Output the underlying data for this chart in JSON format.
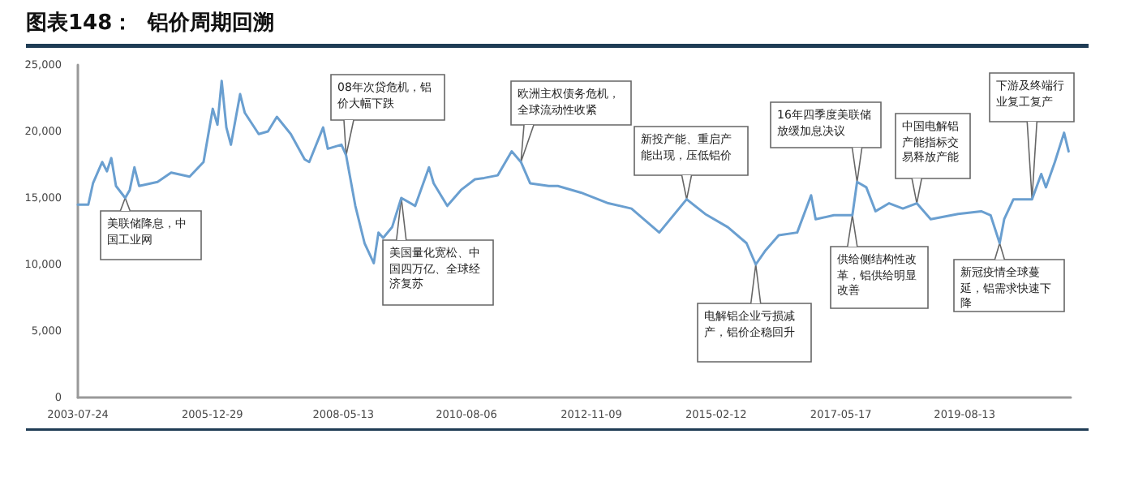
{
  "chart_data": {
    "type": "line",
    "title": "图表148：  铝价周期回溯",
    "x": [
      "2003-07-24",
      "2003-10",
      "2003-11",
      "2004-01",
      "2004-02",
      "2004-03",
      "2004-04",
      "2004-06",
      "2004-07",
      "2004-08",
      "2004-09",
      "2005-01",
      "2005-04",
      "2005-08",
      "2005-11",
      "2006-01",
      "2006-02",
      "2006-03",
      "2006-04",
      "2006-05",
      "2006-07",
      "2006-08",
      "2006-11",
      "2007-01",
      "2007-03",
      "2007-06",
      "2007-09",
      "2007-10",
      "2008-01",
      "2008-02",
      "2008-05",
      "2008-06",
      "2008-08",
      "2008-10",
      "2008-12",
      "2009-01",
      "2009-02",
      "2009-04",
      "2009-06",
      "2009-09",
      "2009-12",
      "2010-01",
      "2010-04",
      "2010-07",
      "2010-10",
      "2010-12",
      "2011-03",
      "2011-06",
      "2011-08",
      "2011-10",
      "2012-02",
      "2012-04",
      "2012-09",
      "2013-03",
      "2013-08",
      "2014-02",
      "2014-08",
      "2014-12",
      "2015-05",
      "2015-09",
      "2015-11",
      "2016-01",
      "2016-04",
      "2016-08",
      "2016-11",
      "2016-12",
      "2017-04",
      "2017-08",
      "2017-09",
      "2017-11",
      "2018-01",
      "2018-04",
      "2018-07",
      "2018-10",
      "2019-01",
      "2019-07",
      "2019-12",
      "2020-02",
      "2020-04",
      "2020-05",
      "2020-07",
      "2020-11",
      "2021-01",
      "2021-02",
      "2021-04",
      "2021-06",
      "2021-07"
    ],
    "series": [
      {
        "color": "#6a9fd0",
        "values": [
          14500,
          14500,
          16100,
          17700,
          17000,
          18000,
          15900,
          15000,
          15600,
          17300,
          15900,
          16200,
          16900,
          16600,
          17700,
          21700,
          20500,
          23800,
          20300,
          19000,
          22800,
          21400,
          19800,
          20000,
          21100,
          19800,
          17900,
          17700,
          20300,
          18700,
          19000,
          18200,
          14400,
          11600,
          10100,
          12400,
          12000,
          12800,
          15000,
          14400,
          17300,
          16100,
          14400,
          15600,
          16400,
          16500,
          16700,
          18500,
          17700,
          16100,
          15900,
          15900,
          15400,
          14600,
          14200,
          12400,
          14900,
          13800,
          12800,
          11600,
          10000,
          11000,
          12200,
          12400,
          15200,
          13400,
          13700,
          13700,
          16200,
          15800,
          14000,
          14600,
          14200,
          14600,
          13400,
          13800,
          14000,
          13700,
          11600,
          13400,
          14900,
          14900,
          16800,
          15800,
          17700,
          19900,
          18500
        ]
      }
    ],
    "xlim": [
      "2003-07-24",
      "2021-07-15"
    ],
    "xticks": [
      "2003-07-24",
      "2005-12-29",
      "2008-05-13",
      "2010-08-06",
      "2012-11-09",
      "2015-02-12",
      "2017-05-17",
      "2019-08-13"
    ],
    "ylim": [
      0,
      25000
    ],
    "yticks": [
      {
        "value": 0,
        "label": "0"
      },
      {
        "value": 5000,
        "label": "5,000"
      },
      {
        "value": 10000,
        "label": "10,000"
      },
      {
        "value": 15000,
        "label": "15,000"
      },
      {
        "value": 20000,
        "label": "20,000"
      },
      {
        "value": 25000,
        "label": "25,000"
      }
    ],
    "grid": false,
    "marker": "none",
    "line_style": "solid",
    "annotations": [
      {
        "text": "美联储降息，中国工业网",
        "x": "2004-06",
        "y": 15000
      },
      {
        "text": "08年次贷危机，铝价大幅下跌",
        "x": "2008-06",
        "y": 18200
      },
      {
        "text": "美国量化宽松、中国四万亿、全球经济复苏",
        "x": "2009-06",
        "y": 15000
      },
      {
        "text": "欧洲主权债务危机，全球流动性收紧",
        "x": "2011-08",
        "y": 17700
      },
      {
        "text": "新投产能、重启产能出现，压低铝价",
        "x": "2014-08",
        "y": 14900
      },
      {
        "text": "16年四季度美联储放缓加息决议",
        "x": "2017-09",
        "y": 16200
      },
      {
        "text": "中国电解铝产能指标交易释放产能",
        "x": "2018-10",
        "y": 14600
      },
      {
        "text": "下游及终端行业复工复产",
        "x": "2020-11",
        "y": 14900
      },
      {
        "text": "电解铝企业亏损减产，铝价企稳回升",
        "x": "2015-11",
        "y": 10000
      },
      {
        "text": "供给侧结构性改革，铝供给明显改善",
        "x": "2017-08",
        "y": 13700
      },
      {
        "text": "新冠疫情全球蔓延，铝需求快速下降",
        "x": "2020-04",
        "y": 11600
      }
    ]
  }
}
